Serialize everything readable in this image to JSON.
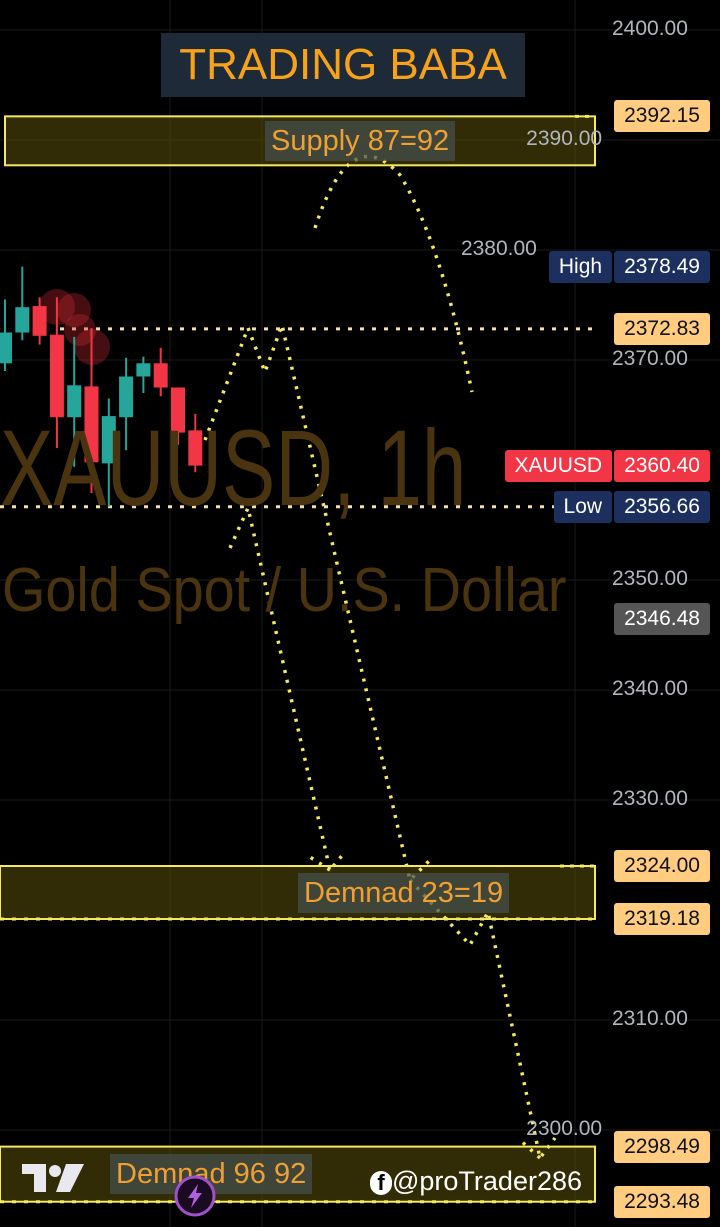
{
  "header": {
    "logo_text": "TRADING BABA"
  },
  "watermark": {
    "symbol": "XAUUSD, 1h",
    "description": "Gold Spot / U.S. Dollar"
  },
  "credit": {
    "text": "@proTrader286",
    "icon": "facebook-icon"
  },
  "colors": {
    "up": "#26a69a",
    "down": "#f23645",
    "zone_border": "#f5e960",
    "drawing": "#f5e960",
    "tag_orange": "#ffcc80",
    "tag_navy": "#1c2f5e",
    "tag_red": "#f23645"
  },
  "chart_data": {
    "type": "candlestick",
    "symbol": "XAUUSD",
    "timeframe": "1h",
    "ylim": [
      2290,
      2402
    ],
    "y_ticks": [
      "2400.00",
      "2390.00",
      "2380.00",
      "2370.00",
      "2350.00",
      "2340.00",
      "2330.00",
      "2310.00",
      "2300.00"
    ],
    "candles": [
      {
        "o": 2369.7,
        "h": 2375.5,
        "l": 2369.0,
        "c": 2372.5
      },
      {
        "o": 2372.5,
        "h": 2378.49,
        "l": 2371.8,
        "c": 2374.8
      },
      {
        "o": 2374.9,
        "h": 2375.7,
        "l": 2371.4,
        "c": 2372.2
      },
      {
        "o": 2372.3,
        "h": 2375.7,
        "l": 2362.0,
        "c": 2364.8
      },
      {
        "o": 2364.8,
        "h": 2372.1,
        "l": 2360.3,
        "c": 2367.7
      },
      {
        "o": 2367.6,
        "h": 2372.9,
        "l": 2357.9,
        "c": 2360.7
      },
      {
        "o": 2360.6,
        "h": 2366.5,
        "l": 2356.66,
        "c": 2364.9
      },
      {
        "o": 2364.8,
        "h": 2370.2,
        "l": 2361.8,
        "c": 2368.5
      },
      {
        "o": 2368.5,
        "h": 2370.3,
        "l": 2367.0,
        "c": 2369.7
      },
      {
        "o": 2369.7,
        "h": 2371.1,
        "l": 2366.7,
        "c": 2367.5
      },
      {
        "o": 2367.5,
        "h": 2367.5,
        "l": 2362.3,
        "c": 2363.4
      },
      {
        "o": 2363.6,
        "h": 2365.1,
        "l": 2359.8,
        "c": 2360.4
      }
    ],
    "zones": [
      {
        "label": "Supply 87=92",
        "top": 2392.15,
        "bottom": 2387.7
      },
      {
        "label": "Demnad 23=19",
        "top": 2324.0,
        "bottom": 2319.18
      },
      {
        "label": "Demnad 96 92",
        "top": 2298.49,
        "bottom": 2293.48
      }
    ],
    "price_tags": [
      {
        "value": "2392.15",
        "price": 2392.15,
        "style": "orange"
      },
      {
        "label": "High",
        "value": "2378.49",
        "price": 2378.49,
        "style": "navy"
      },
      {
        "value": "2372.83",
        "price": 2372.83,
        "style": "orange"
      },
      {
        "label": "XAUUSD",
        "value": "2360.40",
        "price": 2360.4,
        "style": "red"
      },
      {
        "label": "Low",
        "value": "2356.66",
        "price": 2356.66,
        "style": "navy"
      },
      {
        "value": "2346.48",
        "price": 2346.48,
        "style": "gray"
      },
      {
        "value": "2324.00",
        "price": 2324.0,
        "style": "orange"
      },
      {
        "value": "2319.18",
        "price": 2319.18,
        "style": "orange"
      },
      {
        "value": "2298.49",
        "price": 2298.49,
        "style": "orange"
      },
      {
        "value": "2293.48",
        "price": 2293.48,
        "style": "orange"
      }
    ],
    "horizontal_lines": [
      2372.83,
      2356.66,
      2319.18,
      2293.48
    ]
  }
}
